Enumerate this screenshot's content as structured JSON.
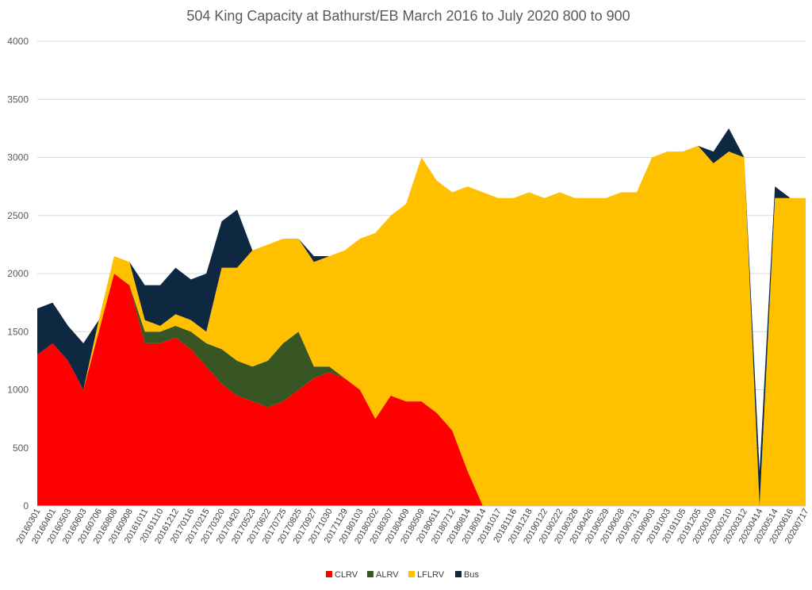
{
  "chart_data": {
    "type": "area",
    "stacked": true,
    "title": "504 King Capacity at Bathurst/EB March 2016 to July 2020  800 to 900",
    "xlabel": "",
    "ylabel": "",
    "ylim": [
      0,
      4000
    ],
    "yticks": [
      0,
      500,
      1000,
      1500,
      2000,
      2500,
      3000,
      3500,
      4000
    ],
    "grid": "horizontal",
    "legend_position": "bottom",
    "x_tick_labels": [
      "20160301",
      "20160401",
      "20160503",
      "20160603",
      "20160706",
      "20160808",
      "20160908",
      "20161011",
      "20161110",
      "20161212",
      "20170116",
      "20170215",
      "20170320",
      "20170420",
      "20170523",
      "20170622",
      "20170725",
      "20170825",
      "20170927",
      "20171030",
      "20171129",
      "20180103",
      "20180202",
      "20180307",
      "20180409",
      "20180509",
      "20180611",
      "20180712",
      "20180814",
      "20180914",
      "20181017",
      "20181116",
      "20181218",
      "20190122",
      "20190222",
      "20190326",
      "20190426",
      "20190529",
      "20190628",
      "20190731",
      "20190903",
      "20191003",
      "20191105",
      "20191205",
      "20200109",
      "20200210",
      "20200312",
      "20200414",
      "20200514",
      "20200616",
      "20200717"
    ],
    "series": [
      {
        "name": "CLRV",
        "color": "#ff0000",
        "values": [
          1300,
          1400,
          1250,
          1000,
          1500,
          2000,
          1900,
          1400,
          1400,
          1450,
          1350,
          1200,
          1050,
          950,
          900,
          850,
          900,
          1000,
          1100,
          1150,
          1100,
          1000,
          750,
          950,
          900,
          900,
          800,
          650,
          300,
          0,
          0,
          0,
          0,
          0,
          0,
          0,
          0,
          0,
          0,
          0,
          0,
          0,
          0,
          0,
          0,
          0,
          0,
          0,
          0,
          0,
          0
        ]
      },
      {
        "name": "ALRV",
        "color": "#375623",
        "values": [
          0,
          0,
          0,
          0,
          0,
          0,
          0,
          100,
          100,
          100,
          150,
          200,
          300,
          300,
          300,
          400,
          500,
          500,
          100,
          50,
          0,
          0,
          0,
          0,
          0,
          0,
          0,
          0,
          0,
          0,
          0,
          0,
          0,
          0,
          0,
          0,
          0,
          0,
          0,
          0,
          0,
          0,
          0,
          0,
          0,
          0,
          0,
          0,
          0,
          0,
          0
        ]
      },
      {
        "name": "LFLRV",
        "color": "#ffc000",
        "values": [
          0,
          0,
          0,
          0,
          100,
          150,
          200,
          100,
          50,
          100,
          100,
          100,
          700,
          800,
          1000,
          1000,
          900,
          800,
          900,
          950,
          1100,
          1300,
          1600,
          1550,
          1700,
          2100,
          2000,
          2050,
          2450,
          2700,
          2650,
          2650,
          2700,
          2650,
          2700,
          2650,
          2650,
          2650,
          2700,
          2700,
          3000,
          3050,
          3050,
          3100,
          2950,
          3050,
          3000,
          0,
          2650,
          2650,
          2650
        ]
      },
      {
        "name": "Bus",
        "color": "#0e2841",
        "values": [
          400,
          350,
          300,
          400,
          0,
          0,
          0,
          300,
          350,
          400,
          350,
          500,
          400,
          500,
          0,
          0,
          0,
          0,
          50,
          0,
          0,
          0,
          0,
          0,
          0,
          0,
          0,
          0,
          0,
          0,
          0,
          0,
          0,
          0,
          0,
          0,
          0,
          0,
          0,
          0,
          0,
          0,
          0,
          0,
          100,
          200,
          0,
          300,
          100,
          0,
          0
        ]
      }
    ]
  }
}
